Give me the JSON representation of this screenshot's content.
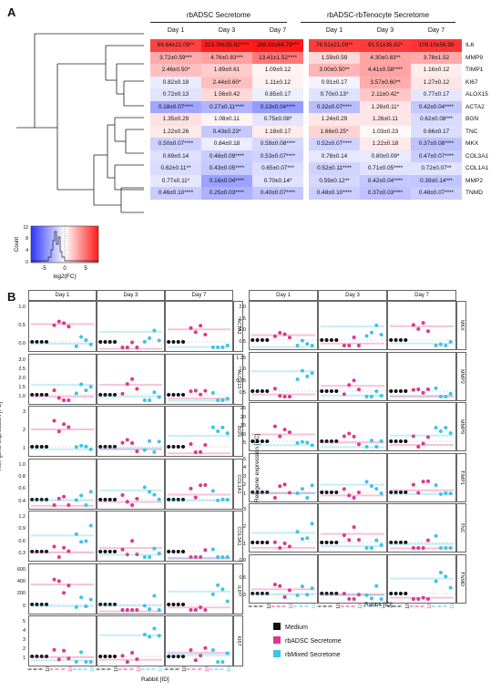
{
  "panel_a": {
    "letter": "A",
    "group1": "rbADSC Secretome",
    "group2": "rbADSC-rbTenocyte Secretome",
    "columns": [
      "Day 1",
      "Day 3",
      "Day 7",
      "Day 1",
      "Day 3",
      "Day 7"
    ],
    "rows": [
      {
        "gene": "IL6",
        "cells": [
          "69.64±21.09**",
          "223.39±35.82****",
          "286.92±64.79***",
          "76.51±21.09**",
          "91.51±35.82*",
          "109.10±56.98"
        ],
        "l2": [
          6.1,
          7.8,
          8.2,
          6.3,
          6.5,
          6.8
        ]
      },
      {
        "gene": "MMP9",
        "cells": [
          "3.72±0.59***",
          "4.76±0.83***",
          "13.41±1.52****",
          "1.59±0.59",
          "4.30±0.83**",
          "3.78±1.52"
        ],
        "l2": [
          1.9,
          2.25,
          3.75,
          0.67,
          2.1,
          1.92
        ]
      },
      {
        "gene": "TIMP1",
        "cells": [
          "2.46±0.50*",
          "1.89±0.61",
          "1.09±0.12",
          "3.00±0.50**",
          "4.41±0.58****",
          "1.16±0.12"
        ],
        "l2": [
          1.3,
          0.92,
          0.12,
          1.58,
          2.14,
          0.21
        ]
      },
      {
        "gene": "KI67",
        "cells": [
          "0.82±0.18",
          "2.44±0.60*",
          "1.11±0.12",
          "0.91±0.17",
          "3.57±0.60**",
          "1.27±0.12"
        ],
        "l2": [
          -0.29,
          1.29,
          0.15,
          -0.14,
          1.84,
          0.34
        ]
      },
      {
        "gene": "ALOX15",
        "cells": [
          "0.72±0.13",
          "1.56±0.42",
          "0.85±0.17",
          "0.70±0.13*",
          "2.11±0.42*",
          "0.77±0.17"
        ],
        "l2": [
          -0.47,
          0.64,
          -0.23,
          -0.51,
          1.08,
          -0.38
        ]
      },
      {
        "gene": "ACTA2",
        "cells": [
          "0.18±0.07****",
          "0.27±0.11****",
          "0.13±0.04****",
          "0.32±0.07****",
          "1.28±0.11*",
          "0.42±0.04****"
        ],
        "l2": [
          -2.47,
          -1.89,
          -2.94,
          -1.64,
          0.36,
          -1.25
        ]
      },
      {
        "gene": "BGN",
        "cells": [
          "1.35±0.29",
          "1.08±0.11",
          "0.75±0.08*",
          "1.24±0.29",
          "1.26±0.11",
          "0.62±0.08***"
        ],
        "l2": [
          0.43,
          0.11,
          -0.42,
          0.31,
          0.33,
          -0.69
        ]
      },
      {
        "gene": "TNC",
        "cells": [
          "1.22±0.26",
          "0.43±0.23*",
          "1.18±0.17",
          "1.66±0.25*",
          "1.03±0.23",
          "0.66±0.17"
        ],
        "l2": [
          0.29,
          -1.22,
          0.24,
          0.73,
          0.04,
          -0.6
        ]
      },
      {
        "gene": "MKX",
        "cells": [
          "0.50±0.07****",
          "0.84±0.18",
          "0.59±0.08****",
          "0.52±0.07****",
          "1.22±0.18",
          "0.37±0.08****"
        ],
        "l2": [
          -1.0,
          -0.25,
          -0.76,
          -0.94,
          0.29,
          -1.43
        ]
      },
      {
        "gene": "COL3A1",
        "cells": [
          "0.69±0.14",
          "0.46±0.09****",
          "0.53±0.07****",
          "0.78±0.14",
          "0.80±0.09*",
          "0.47±0.07****"
        ],
        "l2": [
          -0.54,
          -1.12,
          -0.92,
          -0.36,
          -0.32,
          -1.09
        ]
      },
      {
        "gene": "COL1A1",
        "cells": [
          "0.62±0.11**",
          "0.43±0.05****",
          "0.65±0.07***",
          "0.52±0.11****",
          "0.71±0.05****",
          "0.72±0.07**"
        ],
        "l2": [
          -0.69,
          -1.22,
          -0.62,
          -0.94,
          -0.49,
          -0.47
        ]
      },
      {
        "gene": "MMP2",
        "cells": [
          "0.77±0.11*",
          "0.16±0.04****",
          "0.70±0.14*",
          "0.59±0.12**",
          "0.42±0.04****",
          "0.39±0.14***"
        ],
        "l2": [
          -0.38,
          -2.64,
          -0.51,
          -0.76,
          -1.25,
          -1.36
        ]
      },
      {
        "gene": "TNMD",
        "cells": [
          "0.46±0.10****",
          "0.25±0.03****",
          "0.40±0.07****",
          "0.48±0.10****",
          "0.37±0.03****",
          "0.48±0.07****"
        ],
        "l2": [
          -1.12,
          -2.0,
          -1.32,
          -1.06,
          -1.43,
          -1.06
        ]
      }
    ],
    "color_key": {
      "ylabel": "Count",
      "xlabel": "log2(FC)",
      "yticks": [
        "0",
        "4",
        "8",
        "12"
      ],
      "xticks": [
        "-5",
        "0",
        "5"
      ],
      "low_color": "#2b35ff",
      "mid_color": "#ffffff",
      "high_color": "#ff1a1a",
      "range": [
        -8,
        8
      ]
    }
  },
  "panel_b": {
    "letter": "B",
    "ylabel": "Rel. gene expression [FC]",
    "xlabel": "Rabbit [ID]",
    "days": [
      "Day 1",
      "Day 3",
      "Day 7"
    ],
    "rabbit_ids": [
      "6",
      "8",
      "9",
      "10",
      "6",
      "8",
      "9",
      "10",
      "6",
      "8",
      "9",
      "10"
    ],
    "left_genes": [
      {
        "gene": "ACTA2",
        "ticks": [
          "0.0",
          "0.5",
          "1.0"
        ],
        "ymax": 1.3
      },
      {
        "gene": "ALOX15",
        "ticks": [
          "1.0",
          "1.5",
          "2.0",
          "2.5",
          "3.0"
        ],
        "ymax": 3.3
      },
      {
        "gene": "BGN",
        "ticks": [
          "1",
          "2",
          "3"
        ],
        "ymax": 3.4
      },
      {
        "gene": "COL1A1",
        "ticks": [
          "0.4",
          "0.6",
          "0.8",
          "1.0"
        ],
        "ymax": 1.1
      },
      {
        "gene": "COL3A1",
        "ticks": [
          "0.3",
          "0.6",
          "0.9",
          "1.2"
        ],
        "ymax": 1.3
      },
      {
        "gene": "IL6",
        "ticks": [
          "0",
          "200",
          "400",
          "600"
        ],
        "ymax": 650
      },
      {
        "gene": "KI67",
        "ticks": [
          "1",
          "2",
          "3",
          "4",
          "5"
        ],
        "ymax": 5.5
      }
    ],
    "right_genes": [
      {
        "gene": "MKX",
        "ticks": [
          "0.5",
          "1.0",
          "1.5",
          "2.0"
        ],
        "ymax": 2.2
      },
      {
        "gene": "MMP2",
        "ticks": [
          "0.5",
          "0.75",
          "1.0",
          "1.25"
        ],
        "ymax": 1.35
      },
      {
        "gene": "MMP9",
        "ticks": [
          "5",
          "10",
          "15",
          "20",
          "25"
        ],
        "ymax": 26
      },
      {
        "gene": "TIMP1",
        "ticks": [
          "1",
          "2",
          "3",
          "4",
          "5"
        ],
        "ymax": 5.5
      },
      {
        "gene": "TNC",
        "ticks": [
          "1",
          "2",
          "3"
        ],
        "ymax": 3.3
      },
      {
        "gene": "TNMD",
        "ticks": [
          "0.3",
          "0.6",
          "0.9"
        ],
        "ymax": 1.0
      }
    ],
    "legend": [
      {
        "label": "Medium",
        "color": "#111111"
      },
      {
        "label": "rbADSC Secretome",
        "color": "#e0368c"
      },
      {
        "label": "rbMixed Secretome",
        "color": "#3fc3e6"
      }
    ]
  }
}
